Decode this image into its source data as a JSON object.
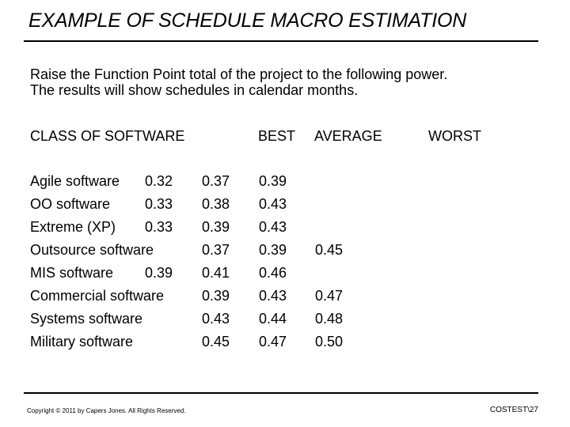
{
  "title": "EXAMPLE OF SCHEDULE MACRO ESTIMATION",
  "intro": [
    "Raise the Function Point total of the project to the following power.",
    "The results will show schedules in calendar months."
  ],
  "table": {
    "headers": {
      "class": "CLASS OF SOFTWARE",
      "best": "BEST",
      "average": "AVERAGE",
      "worst": "WORST"
    },
    "rows": [
      {
        "name": "Agile software",
        "best": "0.32",
        "average": "0.37",
        "worst": "0.39",
        "extra": ""
      },
      {
        "name": "OO software",
        "best": "0.33",
        "average": "0.38",
        "worst": "0.43",
        "extra": ""
      },
      {
        "name": "Extreme (XP)",
        "best": "0.33",
        "average": "0.39",
        "worst": "0.43",
        "extra": ""
      },
      {
        "name": "Outsource software",
        "best": "0.37",
        "average": "0.39",
        "worst": "0.45",
        "extra": ""
      },
      {
        "name": "MIS software",
        "best": "0.39",
        "average": "0.41",
        "worst": "0.46",
        "extra": ""
      },
      {
        "name": "Commercial software",
        "best": "0.39",
        "average": "0.43",
        "worst": "0.47",
        "extra": ""
      },
      {
        "name": "Systems software",
        "best": "0.43",
        "average": "0.44",
        "worst": "0.48",
        "extra": ""
      },
      {
        "name": "Military software",
        "best": "0.45",
        "average": "0.47",
        "worst": "0.50",
        "extra": ""
      }
    ]
  },
  "footer": {
    "copyright": "Copyright © 2011 by Capers Jones. All Rights Reserved.",
    "slide_id": "COSTEST\\27"
  }
}
